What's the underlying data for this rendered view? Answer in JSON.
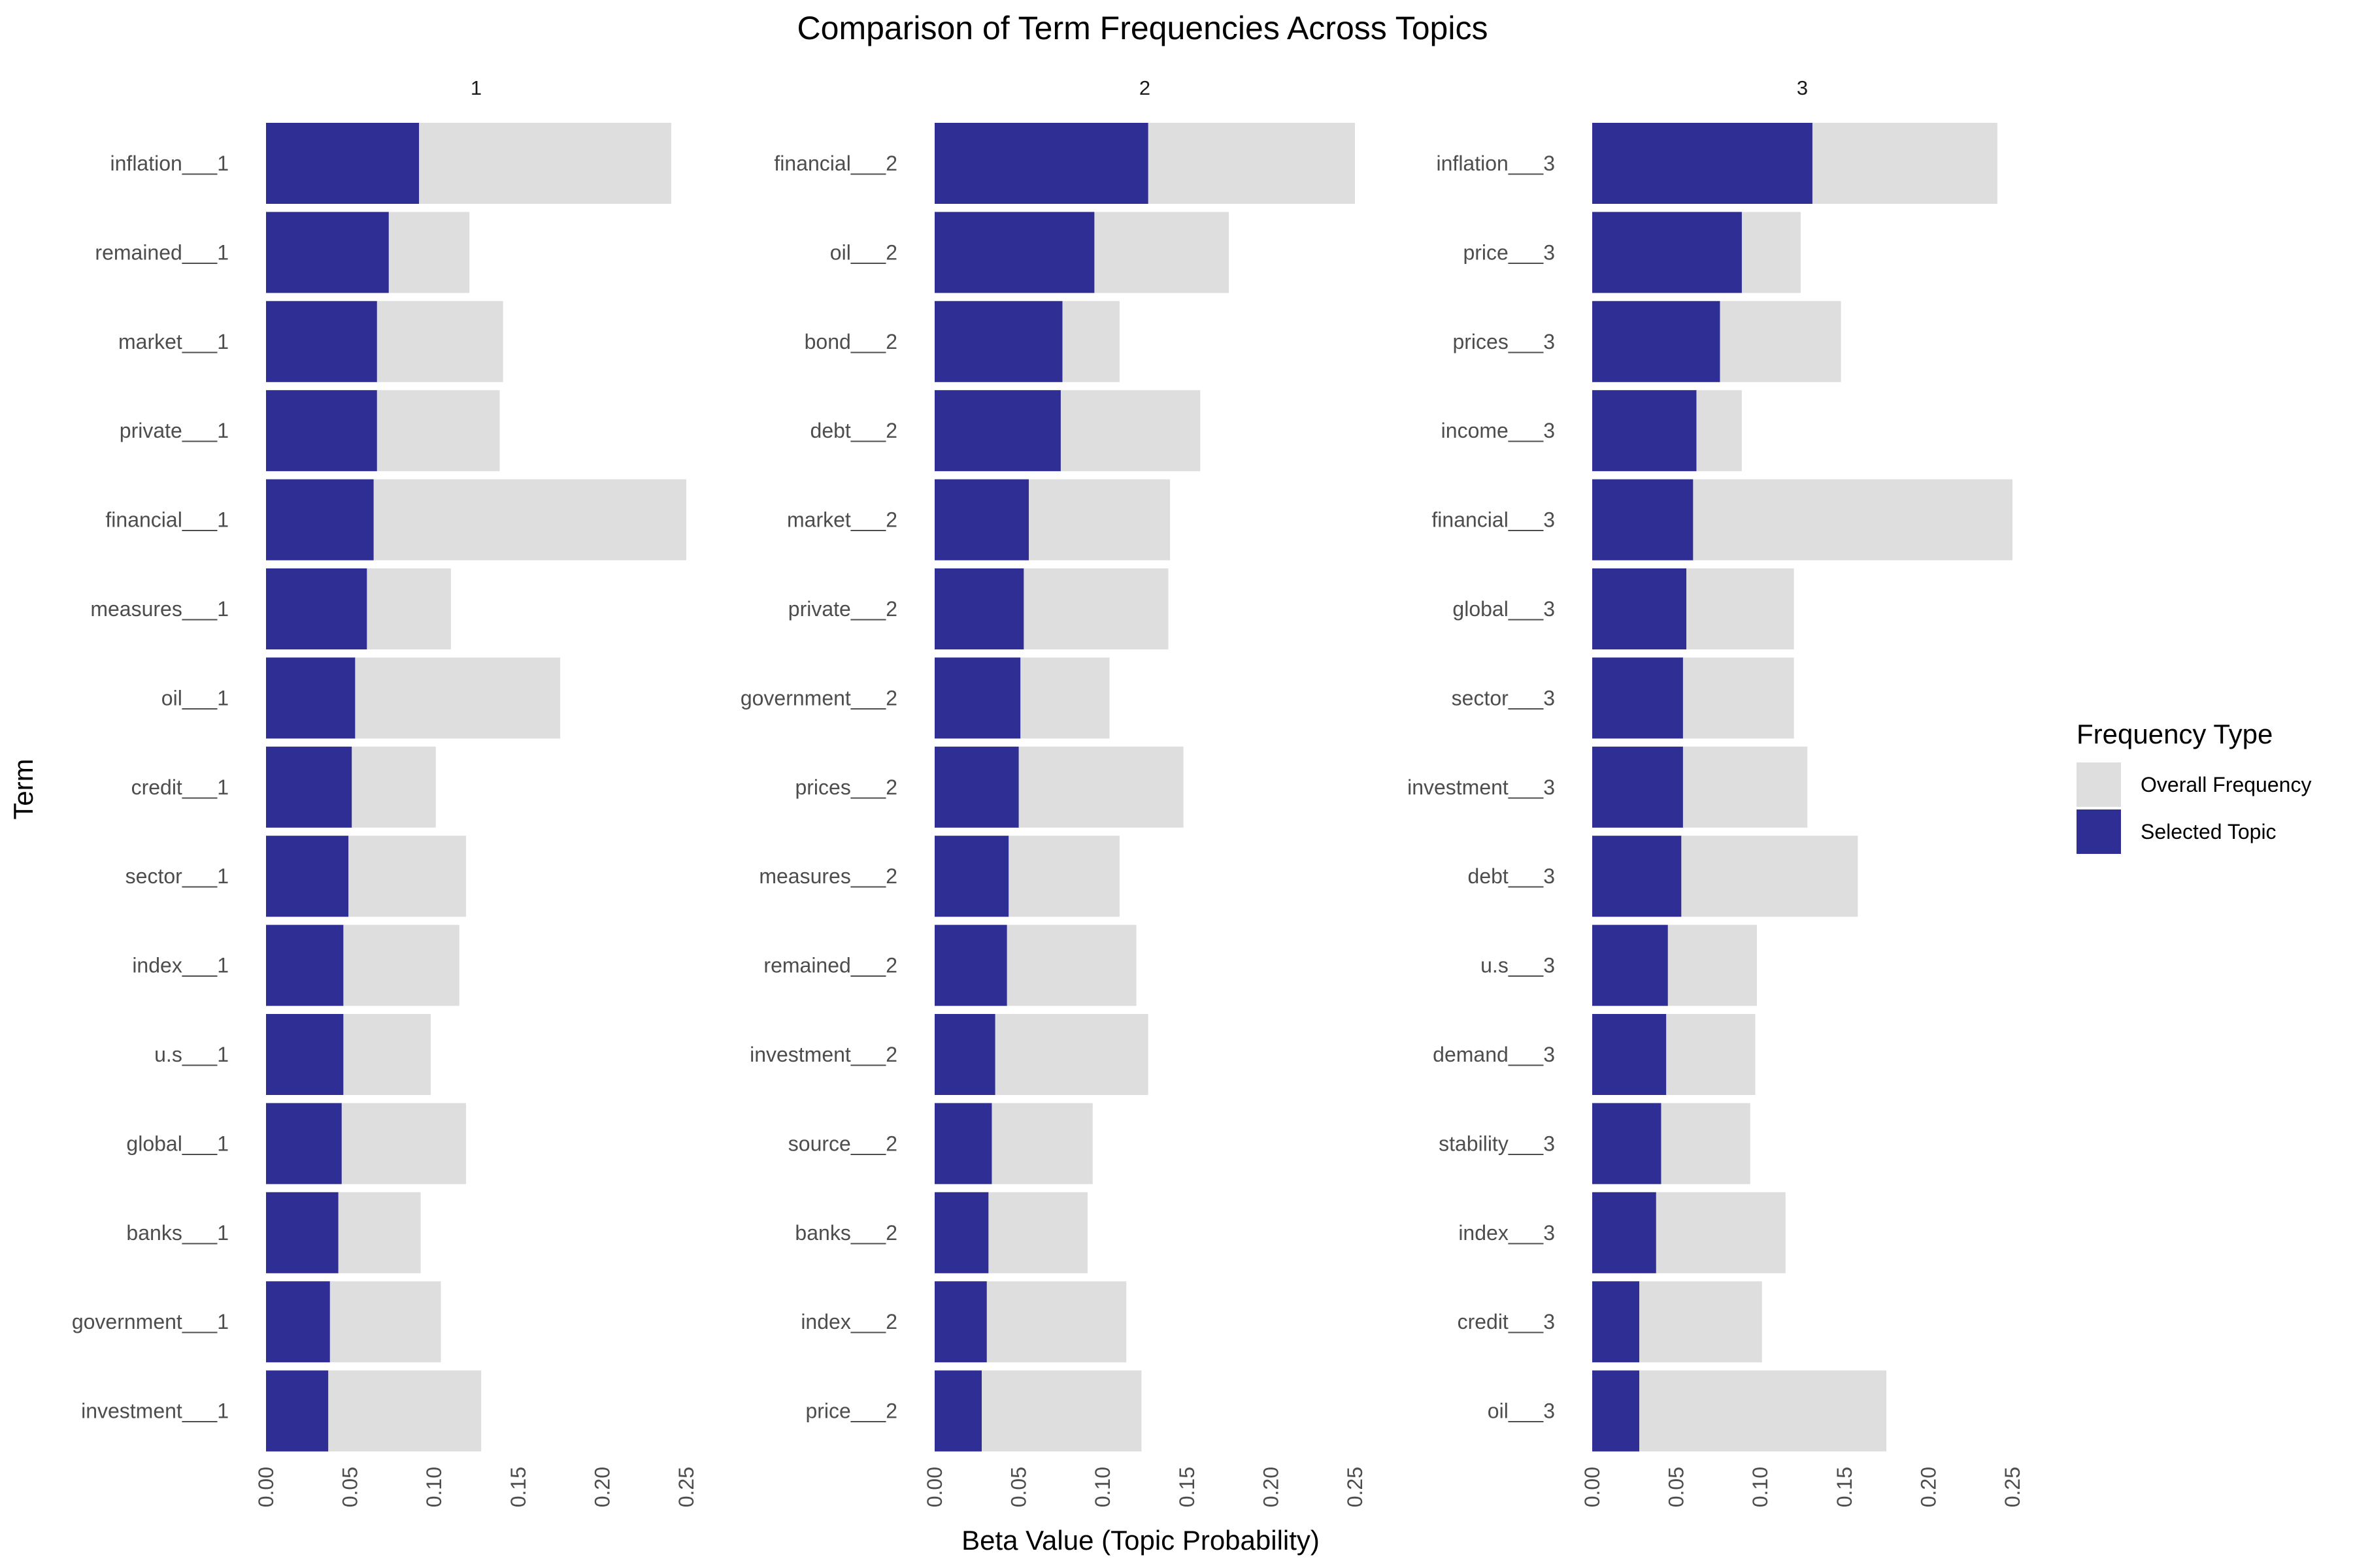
{
  "chart_data": {
    "type": "bar",
    "orientation": "horizontal",
    "title": "Comparison of Term Frequencies Across Topics",
    "xlabel": "Beta Value (Topic Probability)",
    "ylabel": "Term",
    "xlim": [
      0,
      0.25
    ],
    "xticks": [
      "0.00",
      "0.05",
      "0.10",
      "0.15",
      "0.20",
      "0.25"
    ],
    "grid": false,
    "legend": {
      "title": "Frequency Type",
      "position": "right",
      "entries": [
        {
          "label": "Overall Frequency",
          "color": "#dedede"
        },
        {
          "label": "Selected Topic",
          "color": "#2e2e94"
        }
      ]
    },
    "colors": {
      "overall": "#dedede",
      "selected": "#2e2e94"
    },
    "panels": [
      {
        "strip": "1",
        "terms": [
          "inflation___1",
          "remained___1",
          "market___1",
          "private___1",
          "financial___1",
          "measures___1",
          "oil___1",
          "credit___1",
          "sector___1",
          "index___1",
          "u.s___1",
          "global___1",
          "banks___1",
          "government___1",
          "investment___1"
        ],
        "selected_topic": [
          0.091,
          0.073,
          0.066,
          0.066,
          0.064,
          0.06,
          0.053,
          0.051,
          0.049,
          0.046,
          0.046,
          0.045,
          0.043,
          0.038,
          0.037
        ],
        "overall_frequency": [
          0.241,
          0.121,
          0.141,
          0.139,
          0.25,
          0.11,
          0.175,
          0.101,
          0.119,
          0.115,
          0.098,
          0.119,
          0.092,
          0.104,
          0.128
        ]
      },
      {
        "strip": "2",
        "terms": [
          "financial___2",
          "oil___2",
          "bond___2",
          "debt___2",
          "market___2",
          "private___2",
          "government___2",
          "prices___2",
          "measures___2",
          "remained___2",
          "investment___2",
          "source___2",
          "banks___2",
          "index___2",
          "price___2"
        ],
        "selected_topic": [
          0.127,
          0.095,
          0.076,
          0.075,
          0.056,
          0.053,
          0.051,
          0.05,
          0.044,
          0.043,
          0.036,
          0.034,
          0.032,
          0.031,
          0.028
        ],
        "overall_frequency": [
          0.25,
          0.175,
          0.11,
          0.158,
          0.14,
          0.139,
          0.104,
          0.148,
          0.11,
          0.12,
          0.127,
          0.094,
          0.091,
          0.114,
          0.123
        ]
      },
      {
        "strip": "3",
        "terms": [
          "inflation___3",
          "price___3",
          "prices___3",
          "income___3",
          "financial___3",
          "global___3",
          "sector___3",
          "investment___3",
          "debt___3",
          "u.s___3",
          "demand___3",
          "stability___3",
          "index___3",
          "credit___3",
          "oil___3"
        ],
        "selected_topic": [
          0.131,
          0.089,
          0.076,
          0.062,
          0.06,
          0.056,
          0.054,
          0.054,
          0.053,
          0.045,
          0.044,
          0.041,
          0.038,
          0.028,
          0.028
        ],
        "overall_frequency": [
          0.241,
          0.124,
          0.148,
          0.089,
          0.25,
          0.12,
          0.12,
          0.128,
          0.158,
          0.098,
          0.097,
          0.094,
          0.115,
          0.101,
          0.175
        ]
      }
    ]
  }
}
